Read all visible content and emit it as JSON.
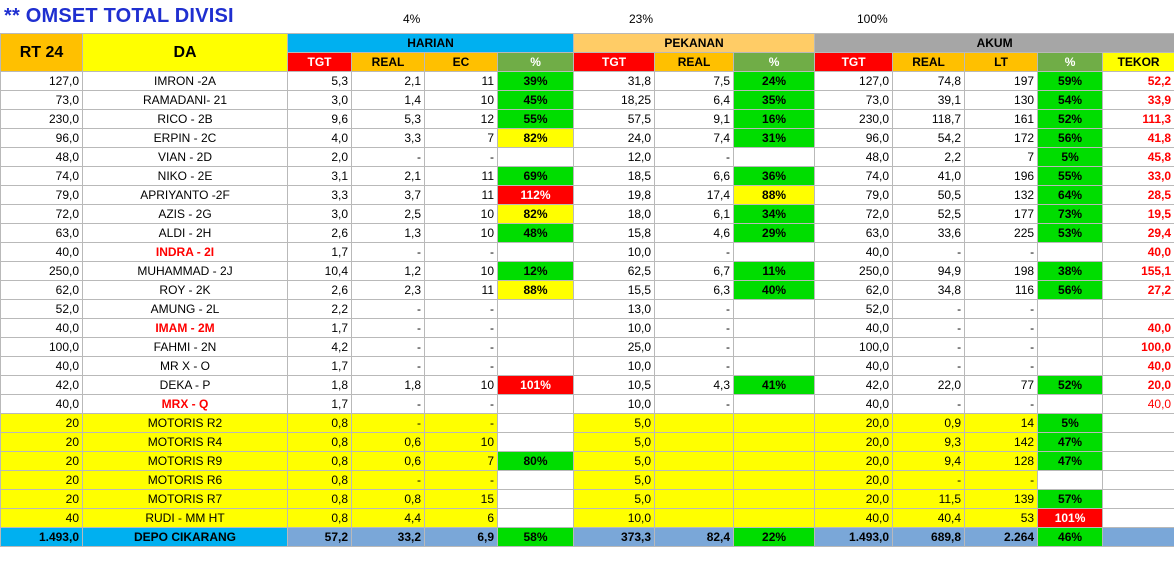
{
  "title": "** OMSET TOTAL DIVISI",
  "top_pcts": {
    "harian": "4%",
    "pekanan": "23%",
    "akum": "100%"
  },
  "headers": {
    "rt": "RT 24",
    "da": "DA",
    "harian": "HARIAN",
    "pekanan": "PEKANAN",
    "akum": "AKUM",
    "tgt": "TGT",
    "real": "REAL",
    "ec": "EC",
    "pct": "%",
    "lt": "LT",
    "tekor": "TEKOR"
  },
  "rows": [
    {
      "rt": "127,0",
      "da": "IMRON -2A",
      "h_tgt": "5,3",
      "h_real": "2,1",
      "h_ec": "11",
      "h_pct": "39%",
      "h_pct_c": "g",
      "p_tgt": "31,8",
      "p_real": "7,5",
      "p_pct": "24%",
      "p_pct_c": "g",
      "a_tgt": "127,0",
      "a_real": "74,8",
      "a_lt": "197",
      "a_pct": "59%",
      "a_pct_c": "g",
      "tekor": "52,2"
    },
    {
      "rt": "73,0",
      "da": "RAMADANI- 21",
      "h_tgt": "3,0",
      "h_real": "1,4",
      "h_ec": "10",
      "h_pct": "45%",
      "h_pct_c": "g",
      "p_tgt": "18,25",
      "p_real": "6,4",
      "p_pct": "35%",
      "p_pct_c": "g",
      "a_tgt": "73,0",
      "a_real": "39,1",
      "a_lt": "130",
      "a_pct": "54%",
      "a_pct_c": "g",
      "tekor": "33,9"
    },
    {
      "rt": "230,0",
      "da": "RICO - 2B",
      "h_tgt": "9,6",
      "h_real": "5,3",
      "h_ec": "12",
      "h_pct": "55%",
      "h_pct_c": "g",
      "p_tgt": "57,5",
      "p_real": "9,1",
      "p_pct": "16%",
      "p_pct_c": "g",
      "a_tgt": "230,0",
      "a_real": "118,7",
      "a_lt": "161",
      "a_pct": "52%",
      "a_pct_c": "g",
      "tekor": "111,3"
    },
    {
      "rt": "96,0",
      "da": "ERPIN - 2C",
      "h_tgt": "4,0",
      "h_real": "3,3",
      "h_ec": "7",
      "h_pct": "82%",
      "h_pct_c": "y",
      "p_tgt": "24,0",
      "p_real": "7,4",
      "p_pct": "31%",
      "p_pct_c": "g",
      "a_tgt": "96,0",
      "a_real": "54,2",
      "a_lt": "172",
      "a_pct": "56%",
      "a_pct_c": "g",
      "tekor": "41,8"
    },
    {
      "rt": "48,0",
      "da": "VIAN - 2D",
      "h_tgt": "2,0",
      "h_real": "-",
      "h_ec": "-",
      "h_pct": "",
      "h_pct_c": "",
      "p_tgt": "12,0",
      "p_real": "-",
      "p_pct": "",
      "p_pct_c": "",
      "a_tgt": "48,0",
      "a_real": "2,2",
      "a_lt": "7",
      "a_pct": "5%",
      "a_pct_c": "g",
      "tekor": "45,8"
    },
    {
      "rt": "74,0",
      "da": "NIKO - 2E",
      "h_tgt": "3,1",
      "h_real": "2,1",
      "h_ec": "11",
      "h_pct": "69%",
      "h_pct_c": "g",
      "p_tgt": "18,5",
      "p_real": "6,6",
      "p_pct": "36%",
      "p_pct_c": "g",
      "a_tgt": "74,0",
      "a_real": "41,0",
      "a_lt": "196",
      "a_pct": "55%",
      "a_pct_c": "g",
      "tekor": "33,0"
    },
    {
      "rt": "79,0",
      "da": "APRIYANTO -2F",
      "h_tgt": "3,3",
      "h_real": "3,7",
      "h_ec": "11",
      "h_pct": "112%",
      "h_pct_c": "r",
      "p_tgt": "19,8",
      "p_real": "17,4",
      "p_pct": "88%",
      "p_pct_c": "y",
      "a_tgt": "79,0",
      "a_real": "50,5",
      "a_lt": "132",
      "a_pct": "64%",
      "a_pct_c": "g",
      "tekor": "28,5"
    },
    {
      "rt": "72,0",
      "da": "AZIS - 2G",
      "h_tgt": "3,0",
      "h_real": "2,5",
      "h_ec": "10",
      "h_pct": "82%",
      "h_pct_c": "y",
      "p_tgt": "18,0",
      "p_real": "6,1",
      "p_pct": "34%",
      "p_pct_c": "g",
      "a_tgt": "72,0",
      "a_real": "52,5",
      "a_lt": "177",
      "a_pct": "73%",
      "a_pct_c": "g",
      "tekor": "19,5"
    },
    {
      "rt": "63,0",
      "da": "ALDI - 2H",
      "h_tgt": "2,6",
      "h_real": "1,3",
      "h_ec": "10",
      "h_pct": "48%",
      "h_pct_c": "g",
      "p_tgt": "15,8",
      "p_real": "4,6",
      "p_pct": "29%",
      "p_pct_c": "g",
      "a_tgt": "63,0",
      "a_real": "33,6",
      "a_lt": "225",
      "a_pct": "53%",
      "a_pct_c": "g",
      "tekor": "29,4"
    },
    {
      "rt": "40,0",
      "da": "INDRA - 2I",
      "da_red": true,
      "h_tgt": "1,7",
      "h_real": "-",
      "h_ec": "-",
      "h_pct": "",
      "h_pct_c": "",
      "p_tgt": "10,0",
      "p_real": "-",
      "p_pct": "",
      "p_pct_c": "",
      "a_tgt": "40,0",
      "a_real": "-",
      "a_lt": "-",
      "a_pct": "",
      "a_pct_c": "",
      "tekor": "40,0"
    },
    {
      "rt": "250,0",
      "da": "MUHAMMAD - 2J",
      "h_tgt": "10,4",
      "h_real": "1,2",
      "h_ec": "10",
      "h_pct": "12%",
      "h_pct_c": "g",
      "p_tgt": "62,5",
      "p_real": "6,7",
      "p_pct": "11%",
      "p_pct_c": "g",
      "a_tgt": "250,0",
      "a_real": "94,9",
      "a_lt": "198",
      "a_pct": "38%",
      "a_pct_c": "g",
      "tekor": "155,1"
    },
    {
      "rt": "62,0",
      "da": "ROY - 2K",
      "h_tgt": "2,6",
      "h_real": "2,3",
      "h_ec": "11",
      "h_pct": "88%",
      "h_pct_c": "y",
      "p_tgt": "15,5",
      "p_real": "6,3",
      "p_pct": "40%",
      "p_pct_c": "g",
      "a_tgt": "62,0",
      "a_real": "34,8",
      "a_lt": "116",
      "a_pct": "56%",
      "a_pct_c": "g",
      "tekor": "27,2"
    },
    {
      "rt": "52,0",
      "da": "AMUNG - 2L",
      "h_tgt": "2,2",
      "h_real": "-",
      "h_ec": "-",
      "h_pct": "",
      "h_pct_c": "",
      "p_tgt": "13,0",
      "p_real": "-",
      "p_pct": "",
      "p_pct_c": "",
      "a_tgt": "52,0",
      "a_real": "-",
      "a_lt": "-",
      "a_pct": "",
      "a_pct_c": "",
      "tekor": ""
    },
    {
      "rt": "40,0",
      "da": "IMAM - 2M",
      "da_red": true,
      "h_tgt": "1,7",
      "h_real": "-",
      "h_ec": "-",
      "h_pct": "",
      "h_pct_c": "",
      "p_tgt": "10,0",
      "p_real": "-",
      "p_pct": "",
      "p_pct_c": "",
      "a_tgt": "40,0",
      "a_real": "-",
      "a_lt": "-",
      "a_pct": "",
      "a_pct_c": "",
      "tekor": "40,0"
    },
    {
      "rt": "100,0",
      "da": "FAHMI - 2N",
      "h_tgt": "4,2",
      "h_real": "-",
      "h_ec": "-",
      "h_pct": "",
      "h_pct_c": "",
      "p_tgt": "25,0",
      "p_real": "-",
      "p_pct": "",
      "p_pct_c": "",
      "a_tgt": "100,0",
      "a_real": "-",
      "a_lt": "-",
      "a_pct": "",
      "a_pct_c": "",
      "tekor": "100,0"
    },
    {
      "rt": "40,0",
      "da": "MR X - O",
      "h_tgt": "1,7",
      "h_real": "-",
      "h_ec": "-",
      "h_pct": "",
      "h_pct_c": "",
      "p_tgt": "10,0",
      "p_real": "-",
      "p_pct": "",
      "p_pct_c": "",
      "a_tgt": "40,0",
      "a_real": "-",
      "a_lt": "-",
      "a_pct": "",
      "a_pct_c": "",
      "tekor": "40,0"
    },
    {
      "rt": "42,0",
      "da": "DEKA - P",
      "h_tgt": "1,8",
      "h_real": "1,8",
      "h_ec": "10",
      "h_pct": "101%",
      "h_pct_c": "r",
      "p_tgt": "10,5",
      "p_real": "4,3",
      "p_pct": "41%",
      "p_pct_c": "g",
      "a_tgt": "42,0",
      "a_real": "22,0",
      "a_lt": "77",
      "a_pct": "52%",
      "a_pct_c": "g",
      "tekor": "20,0"
    },
    {
      "rt": "40,0",
      "da": "MRX - Q",
      "da_red": true,
      "h_tgt": "1,7",
      "h_real": "-",
      "h_ec": "-",
      "h_pct": "",
      "h_pct_c": "",
      "p_tgt": "10,0",
      "p_real": "-",
      "p_pct": "",
      "p_pct_c": "",
      "a_tgt": "40,0",
      "a_real": "-",
      "a_lt": "-",
      "a_pct": "",
      "a_pct_c": "",
      "tekor": "40,0",
      "tekor_plain": true
    }
  ],
  "motoris": [
    {
      "rt": "20",
      "da": "MOTORIS R2",
      "h_tgt": "0,8",
      "h_real": "-",
      "h_ec": "-",
      "h_pct": "",
      "h_pct_c": "",
      "p_tgt": "5,0",
      "p_real": "",
      "p_pct": "",
      "a_tgt": "20,0",
      "a_real": "0,9",
      "a_lt": "14",
      "a_pct": "5%",
      "a_pct_c": "g"
    },
    {
      "rt": "20",
      "da": "MOTORIS R4",
      "h_tgt": "0,8",
      "h_real": "0,6",
      "h_ec": "10",
      "h_pct": "",
      "h_pct_c": "",
      "p_tgt": "5,0",
      "p_real": "",
      "p_pct": "",
      "a_tgt": "20,0",
      "a_real": "9,3",
      "a_lt": "142",
      "a_pct": "47%",
      "a_pct_c": "g"
    },
    {
      "rt": "20",
      "da": "MOTORIS R9",
      "h_tgt": "0,8",
      "h_real": "0,6",
      "h_ec": "7",
      "h_pct": "80%",
      "h_pct_c": "g",
      "p_tgt": "5,0",
      "p_real": "",
      "p_pct": "",
      "a_tgt": "20,0",
      "a_real": "9,4",
      "a_lt": "128",
      "a_pct": "47%",
      "a_pct_c": "g"
    },
    {
      "rt": "20",
      "da": "MOTORIS R6",
      "h_tgt": "0,8",
      "h_real": "-",
      "h_ec": "-",
      "h_pct": "",
      "h_pct_c": "",
      "p_tgt": "5,0",
      "p_real": "",
      "p_pct": "",
      "a_tgt": "20,0",
      "a_real": "-",
      "a_lt": "-",
      "a_pct": "",
      "a_pct_c": ""
    },
    {
      "rt": "20",
      "da": "MOTORIS R7",
      "h_tgt": "0,8",
      "h_real": "0,8",
      "h_ec": "15",
      "h_pct": "",
      "h_pct_c": "",
      "p_tgt": "5,0",
      "p_real": "",
      "p_pct": "",
      "a_tgt": "20,0",
      "a_real": "11,5",
      "a_lt": "139",
      "a_pct": "57%",
      "a_pct_c": "g"
    },
    {
      "rt": "40",
      "da": "RUDI - MM HT",
      "h_tgt": "0,8",
      "h_real": "4,4",
      "h_ec": "6",
      "h_pct": "",
      "h_pct_c": "",
      "p_tgt": "10,0",
      "p_real": "",
      "p_pct": "",
      "a_tgt": "40,0",
      "a_real": "40,4",
      "a_lt": "53",
      "a_pct": "101%",
      "a_pct_c": "r"
    }
  ],
  "total": {
    "rt": "1.493,0",
    "da": "DEPO CIKARANG",
    "h_tgt": "57,2",
    "h_real": "33,2",
    "h_ec": "6,9",
    "h_pct": "58%",
    "p_tgt": "373,3",
    "p_real": "82,4",
    "p_pct": "22%",
    "a_tgt": "1.493,0",
    "a_real": "689,8",
    "a_lt": "2.264",
    "a_pct": "46%"
  },
  "colors": {
    "title": "#1f2fd0",
    "harian": "#00b0f0",
    "pekanan": "#ffcc66",
    "akum": "#a6a6a6",
    "tgt": "#ff0000",
    "real_ec": "#ffc000",
    "pct_green": "#00dd00",
    "pct_yellow": "#ffff00",
    "pct_red": "#ff0000",
    "total_blue": "#7aa7d8"
  }
}
